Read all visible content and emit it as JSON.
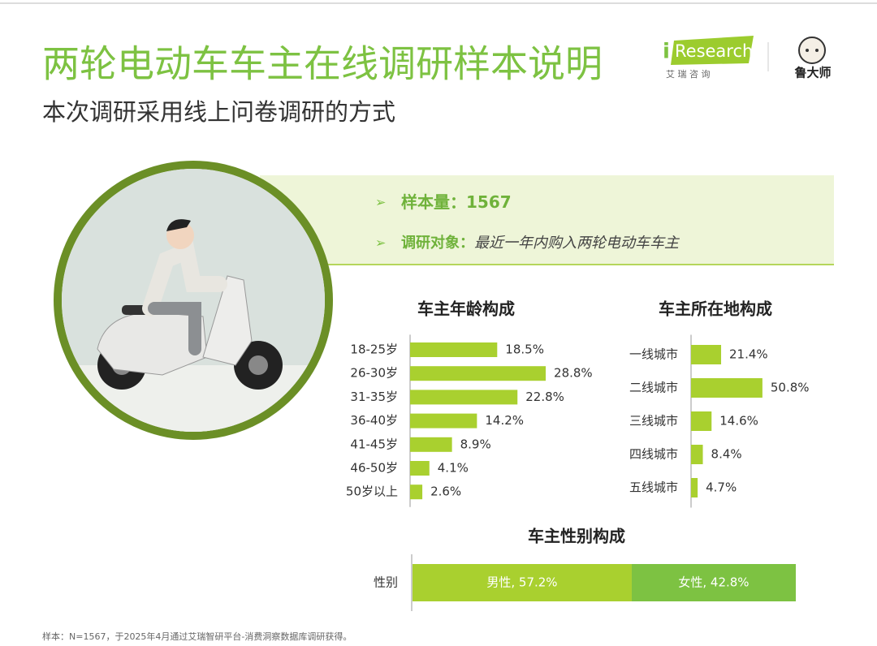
{
  "header": {
    "title": "两轮电动车车主在线调研样本说明",
    "subtitle": "本次调研采用线上问卷调研的方式"
  },
  "logos": {
    "iresearch_i": "i",
    "iresearch_word": "Research",
    "iresearch_cn": "艾 瑞 咨 询",
    "ludashi": "鲁大师"
  },
  "sample": {
    "size_label": "样本量：",
    "size": 1567,
    "target_label": "调研对象：",
    "target": "最近一年内购入两轮电动车车主"
  },
  "footnote": "样本：N=1567，于2025年4月通过艾瑞智研平台-消费洞察数据库调研获得。",
  "chart_data": [
    {
      "type": "bar",
      "title": "车主年龄构成",
      "orientation": "horizontal",
      "color": "#a9d02f",
      "categories": [
        "18-25岁",
        "26-30岁",
        "31-35岁",
        "36-40岁",
        "41-45岁",
        "46-50岁",
        "50岁以上"
      ],
      "values": [
        18.5,
        28.8,
        22.8,
        14.2,
        8.9,
        4.1,
        2.6
      ],
      "value_labels": [
        "18.5%",
        "28.8%",
        "22.8%",
        "14.2%",
        "8.9%",
        "4.1%",
        "2.6%"
      ]
    },
    {
      "type": "bar",
      "title": "车主所在地构成",
      "orientation": "horizontal",
      "color": "#a9d02f",
      "categories": [
        "一线城市",
        "二线城市",
        "三线城市",
        "四线城市",
        "五线城市"
      ],
      "values": [
        21.4,
        50.8,
        14.6,
        8.4,
        4.7
      ],
      "value_labels": [
        "21.4%",
        "50.8%",
        "14.6%",
        "8.4%",
        "4.7%"
      ]
    },
    {
      "type": "stacked_bar",
      "title": "车主性别构成",
      "orientation": "horizontal",
      "categories": [
        "性别"
      ],
      "series": [
        {
          "color": "#a9d02f",
          "values": [
            57.2
          ],
          "value_labels": [
            "男性, 57.2%"
          ]
        },
        {
          "color": "#7dc242",
          "values": [
            42.8
          ],
          "value_labels": [
            "女性, 42.8%"
          ]
        }
      ]
    }
  ]
}
